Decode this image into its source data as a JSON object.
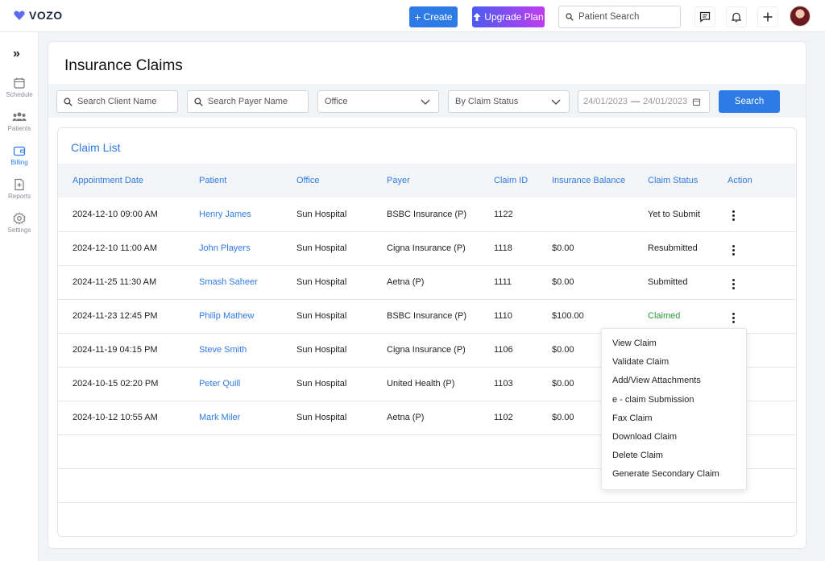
{
  "brand": {
    "name": "VOZO"
  },
  "topbar": {
    "create_label": "Create",
    "upgrade_label": "Upgrade Plan",
    "patient_search_placeholder": "Patient Search"
  },
  "sidebar": {
    "items": [
      {
        "label": "Schedule",
        "icon": "calendar-icon"
      },
      {
        "label": "Patients",
        "icon": "users-icon"
      },
      {
        "label": "Billing",
        "icon": "wallet-icon",
        "active": true
      },
      {
        "label": "Reports",
        "icon": "document-plus-icon"
      },
      {
        "label": "Settings",
        "icon": "gear-icon"
      }
    ]
  },
  "page": {
    "title": "Insurance Claims"
  },
  "filters": {
    "client_placeholder": "Search Client Name",
    "payer_placeholder": "Search Payer Name",
    "office_label": "Office",
    "status_label": "By Claim Status",
    "date_from": "24/01/2023",
    "date_to": "24/01/2023",
    "search_label": "Search"
  },
  "claim_list": {
    "title": "Claim List",
    "columns": [
      "Appointment Date",
      "Patient",
      "Office",
      "Payer",
      "Claim ID",
      "Insurance Balance",
      "Claim Status",
      "Action"
    ],
    "rows": [
      {
        "date": "2024-12-10 09:00 AM",
        "patient": "Henry James",
        "office": "Sun Hospital",
        "payer": "BSBC Insurance (P)",
        "claim_id": "1122",
        "balance": "",
        "status": "Yet to Submit"
      },
      {
        "date": "2024-12-10 11:00 AM",
        "patient": "John Players",
        "office": "Sun Hospital",
        "payer": "Cigna Insurance (P)",
        "claim_id": "1118",
        "balance": "$0.00",
        "status": "Resubmitted"
      },
      {
        "date": "2024-11-25 11:30 AM",
        "patient": "Smash Saheer",
        "office": "Sun Hospital",
        "payer": "Aetna (P)",
        "claim_id": "1111",
        "balance": "$0.00",
        "status": "Submitted"
      },
      {
        "date": "2024-11-23 12:45 PM",
        "patient": "Philip Mathew",
        "office": "Sun Hospital",
        "payer": "BSBC Insurance (P)",
        "claim_id": "1110",
        "balance": "$100.00",
        "status": "Claimed"
      },
      {
        "date": "2024-11-19 04:15 PM",
        "patient": "Steve Smith",
        "office": "Sun Hospital",
        "payer": "Cigna Insurance (P)",
        "claim_id": "1106",
        "balance": "$0.00",
        "status": ""
      },
      {
        "date": "2024-10-15 02:20 PM",
        "patient": "Peter Quill",
        "office": "Sun Hospital",
        "payer": "United Health (P)",
        "claim_id": "1103",
        "balance": "$0.00",
        "status": ""
      },
      {
        "date": "2024-10-12 10:55 AM",
        "patient": "Mark Miler",
        "office": "Sun Hospital",
        "payer": "Aetna (P)",
        "claim_id": "1102",
        "balance": "$0.00",
        "status": ""
      }
    ]
  },
  "action_menu": {
    "items": [
      "View Claim",
      "Validate Claim",
      "Add/View Attachments",
      "e - claim Submission",
      "Fax Claim",
      "Download Claim",
      "Delete Claim",
      "Generate Secondary Claim"
    ]
  },
  "colors": {
    "accent": "#2f7be5",
    "claimed": "#2a9a3a",
    "upgrade_from": "#4a5cf0",
    "upgrade_to": "#c03cf0"
  }
}
